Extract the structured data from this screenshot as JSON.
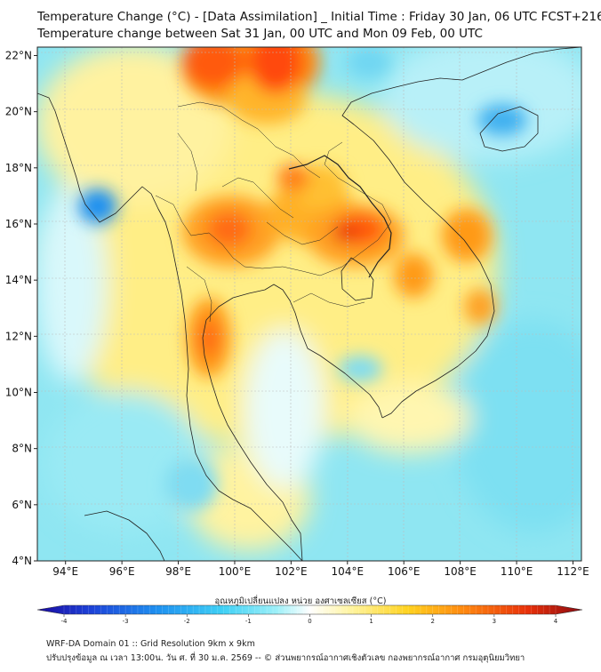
{
  "header": {
    "title_line1": "Temperature Change (°C) - [Data Assimilation] _ Initial Time : Friday 30 Jan, 06 UTC FCST+216",
    "title_line2": "Temperature change between Sat 31 Jan, 00 UTC and Mon 09 Feb, 00 UTC"
  },
  "map": {
    "lon_ticks": [
      "94°E",
      "96°E",
      "98°E",
      "100°E",
      "102°E",
      "104°E",
      "106°E",
      "108°E",
      "110°E",
      "112°E"
    ],
    "lat_ticks": [
      "22°N",
      "20°N",
      "18°N",
      "16°N",
      "14°N",
      "12°N",
      "10°N",
      "8°N",
      "6°N",
      "4°N"
    ],
    "lon_range": [
      93,
      112.3
    ],
    "lat_range": [
      4,
      22.3
    ]
  },
  "colorbar": {
    "label": "อุณหภูมิเปลี่ยนแปลง หน่วย องศาเซลเซียส (°C)",
    "tick_labels": [
      "-4",
      "-3",
      "-2",
      "-1",
      "0",
      "1",
      "2",
      "3",
      "4"
    ],
    "range": [
      -4,
      4
    ],
    "colors": [
      "#1a0aa0",
      "#1d43d8",
      "#1e90f0",
      "#3fd0f5",
      "#9ef0f8",
      "#ffffff",
      "#fff39a",
      "#ffd21f",
      "#ff8a10",
      "#e8300a",
      "#8b0a10"
    ]
  },
  "footer": {
    "line1": "WRF-DA Domain 01 :: Grid Resolution 9km x 9km",
    "line2": "ปรับปรุงข้อมูล ณ เวลา 13:00น. วัน ศ. ที่ 30 ม.ค. 2569 -- © ส่วนพยากรณ์อากาศเชิงตัวเลข กองพยากรณ์อากาศ กรมอุตุนิยมวิทยา"
  }
}
